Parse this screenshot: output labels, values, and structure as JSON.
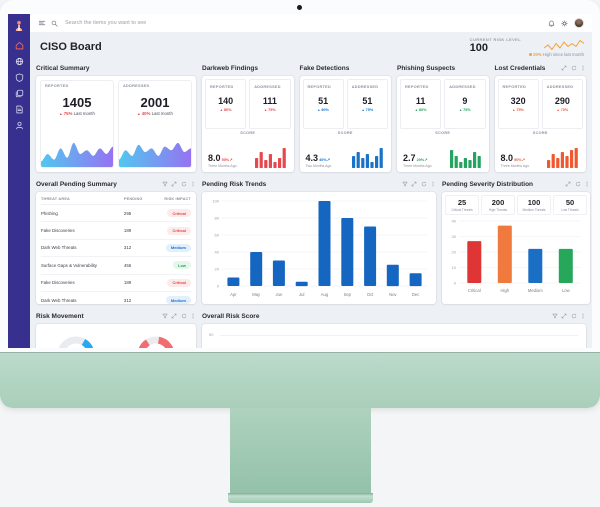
{
  "topbar": {
    "search_placeholder": "Search the items you want to see"
  },
  "sidebar": {
    "items": [
      {
        "icon": "home",
        "active": true
      },
      {
        "icon": "globe",
        "active": false
      },
      {
        "icon": "shield",
        "active": false
      },
      {
        "icon": "layers",
        "active": false
      },
      {
        "icon": "report",
        "active": false
      },
      {
        "icon": "user",
        "active": false
      }
    ]
  },
  "header": {
    "title": "CISO Board",
    "risk_label": "CURRENT RISK LEVEL",
    "risk_value": "100",
    "risk_change": "20%",
    "risk_note": "High since last month",
    "spark_color": "#f0a33c",
    "spark": [
      6,
      8,
      5,
      9,
      6,
      10,
      7,
      9,
      7,
      11,
      9
    ]
  },
  "critical_summary": {
    "title": "Critical Summary",
    "accent": "#e5484d",
    "stats": [
      {
        "label": "REPORTED",
        "value": "1405",
        "change": "75%",
        "note": "Last month",
        "area": [
          3,
          7,
          4,
          10,
          5,
          13,
          7,
          9,
          6,
          10,
          7,
          11
        ]
      },
      {
        "label": "ADDRESSED",
        "value": "2001",
        "change": "40%",
        "note": "Last month",
        "area": [
          4,
          9,
          6,
          12,
          8,
          10,
          6,
          11,
          9,
          13,
          8,
          10
        ]
      }
    ]
  },
  "small_cards": [
    {
      "title": "Darkweb Findings",
      "color": "#e5484d",
      "reported": {
        "label": "REPORTED",
        "value": "140",
        "change": "80%"
      },
      "addressed": {
        "label": "ADDRESSED",
        "value": "111",
        "change": "75%"
      },
      "score": {
        "label": "SCORE",
        "value": "8.0",
        "change": "50%",
        "period": "Three Months Ago"
      },
      "bars": [
        5,
        8,
        4,
        7,
        3,
        5,
        10
      ]
    },
    {
      "title": "Fake Detections",
      "color": "#1a73c9",
      "reported": {
        "label": "REPORTED",
        "value": "51",
        "change": "80%"
      },
      "addressed": {
        "label": "ADDRESSED",
        "value": "51",
        "change": "75%"
      },
      "score": {
        "label": "SCORE",
        "value": "4.3",
        "change": "40%",
        "period": "Two Months Ago"
      },
      "bars": [
        6,
        8,
        5,
        7,
        3,
        6,
        10
      ]
    },
    {
      "title": "Phishing Suspects",
      "color": "#23a45f",
      "reported": {
        "label": "REPORTED",
        "value": "11",
        "change": "80%"
      },
      "addressed": {
        "label": "ADDRESSED",
        "value": "9",
        "change": "75%"
      },
      "score": {
        "label": "SCORE",
        "value": "2.7",
        "change": "20%",
        "period": "Three Months Ago"
      },
      "bars": [
        9,
        6,
        3,
        5,
        4,
        8,
        6
      ]
    },
    {
      "title": "Lost Credentials",
      "color": "#f0582f",
      "has_icons": true,
      "reported": {
        "label": "REPORTED",
        "value": "320",
        "change": "75%"
      },
      "addressed": {
        "label": "ADDRESSED",
        "value": "290",
        "change": "70%"
      },
      "score": {
        "label": "SCORE",
        "value": "8.0",
        "change": "50%",
        "period": "Three Months Ago"
      },
      "bars": [
        4,
        7,
        5,
        8,
        6,
        9,
        10
      ]
    }
  ],
  "pending_summary": {
    "title": "Overall Pending Summary",
    "columns": [
      "THREAT AREA",
      "PENDING",
      "RISK IMPACT"
    ],
    "rows": [
      {
        "area": "Phishing",
        "pending": "295",
        "impact": "Critical"
      },
      {
        "area": "Fake Discoveries",
        "pending": "189",
        "impact": "Critical"
      },
      {
        "area": "Dark Web Threats",
        "pending": "312",
        "impact": "Medium"
      },
      {
        "area": "Surface Gaps & Vulnerability",
        "pending": "456",
        "impact": "Low"
      },
      {
        "area": "Fake Discoveries",
        "pending": "189",
        "impact": "Critical"
      },
      {
        "area": "Dark Web Threats",
        "pending": "312",
        "impact": "Medium"
      }
    ]
  },
  "badge_styles": {
    "Critical": {
      "bg": "#fdebec",
      "fg": "#e5484d"
    },
    "Medium": {
      "bg": "#e4effc",
      "fg": "#1a73c9"
    },
    "Low": {
      "bg": "#e6f6ed",
      "fg": "#27a75a"
    }
  },
  "risk_trends": {
    "title": "Pending Risk Trends",
    "chart_data": {
      "type": "bar",
      "categories": [
        "Apr",
        "May",
        "Jun",
        "Jul",
        "Aug",
        "Sep",
        "Oct",
        "Nov",
        "Dec"
      ],
      "values": [
        10,
        40,
        30,
        5,
        100,
        80,
        70,
        25,
        15
      ],
      "ylim": [
        0,
        100
      ],
      "yticks": [
        0,
        20,
        40,
        60,
        80,
        100
      ],
      "color": "#1566c0"
    }
  },
  "severity": {
    "title": "Pending Severity Distribution",
    "stats": [
      {
        "value": "25",
        "label": "Critical Threats"
      },
      {
        "value": "200",
        "label": "High Threats"
      },
      {
        "value": "100",
        "label": "Medium Threats"
      },
      {
        "value": "50",
        "label": "Low Threats"
      }
    ],
    "chart_data": {
      "type": "bar",
      "categories": [
        "Critical",
        "High",
        "Medium",
        "Low"
      ],
      "values": [
        27,
        37,
        22,
        22
      ],
      "ylim": [
        0,
        40
      ],
      "yticks": [
        0,
        10,
        20,
        30,
        40
      ],
      "colors": [
        "#df3535",
        "#f07a3e",
        "#1a6fc4",
        "#27a75a"
      ]
    }
  },
  "risk_movement": {
    "title": "Risk Movement",
    "gauges": [
      {
        "name": "gauge-blue",
        "color": "#2aa7ee",
        "fraction": 0.44
      },
      {
        "name": "gauge-red",
        "color": "#f26d6d",
        "fraction": 0.88
      }
    ]
  },
  "overall_risk_score": {
    "title": "Overall Risk Score",
    "ytick": "50"
  },
  "icon_names": [
    "menu",
    "search",
    "bell",
    "gear",
    "filter",
    "expand",
    "refresh",
    "more",
    "home",
    "globe",
    "shield",
    "layers",
    "report",
    "user",
    "logo"
  ]
}
